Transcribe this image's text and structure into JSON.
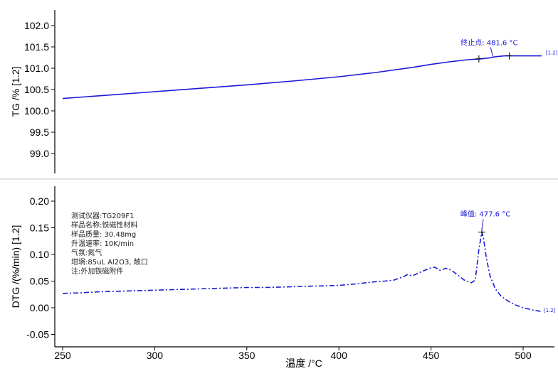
{
  "chart_data": [
    {
      "type": "line",
      "ylabel": "TG /% [1.2]",
      "ylim": [
        98.55,
        102.35
      ],
      "yticks": [
        102.0,
        101.5,
        101.0,
        100.5,
        100.0,
        99.5,
        99.0
      ],
      "ytick_labels": [
        "102.0",
        "101.5",
        "101.0",
        "100.5",
        "100.0",
        "99.5",
        "99.0"
      ],
      "xlim": [
        247,
        516
      ],
      "series": [
        {
          "x": [
            250,
            275,
            300,
            325,
            350,
            375,
            400,
            420,
            440,
            450,
            460,
            470,
            477,
            481.6,
            485,
            490,
            495,
            500,
            505,
            510
          ],
          "values": [
            100.29,
            100.37,
            100.45,
            100.53,
            100.61,
            100.7,
            100.8,
            100.9,
            101.02,
            101.09,
            101.15,
            101.2,
            101.22,
            101.24,
            101.27,
            101.29,
            101.29,
            101.29,
            101.29,
            101.29
          ]
        }
      ],
      "annotations": [
        {
          "text": "终止点: 481.6 °C",
          "x": 481.6,
          "y": 101.24
        }
      ],
      "markers": [
        {
          "x": 476.0,
          "y": 101.22
        },
        {
          "x": 492.5,
          "y": 101.29
        }
      ],
      "curve_label": {
        "text": "[1.2]",
        "x": 510,
        "y": 101.29
      }
    },
    {
      "type": "line",
      "ylabel": "DTG /(%/min) [1.2]",
      "xlabel": "温度 /°C",
      "ylim": [
        -0.075,
        0.222
      ],
      "yticks": [
        0.2,
        0.15,
        0.1,
        0.05,
        0.0,
        -0.05
      ],
      "ytick_labels": [
        "0.20",
        "0.15",
        "0.10",
        "0.05",
        "0.00",
        "-0.05"
      ],
      "xlim": [
        247,
        516
      ],
      "xticks": [
        250,
        300,
        350,
        400,
        450,
        500
      ],
      "xtick_labels": [
        "250",
        "300",
        "350",
        "400",
        "450",
        "500"
      ],
      "series": [
        {
          "x": [
            250,
            260,
            270,
            280,
            290,
            300,
            310,
            320,
            330,
            340,
            350,
            360,
            370,
            380,
            390,
            400,
            410,
            415,
            420,
            425,
            430,
            435,
            437,
            440,
            445,
            450,
            452,
            455,
            458,
            460,
            462,
            465,
            468,
            470,
            472,
            474,
            475,
            476,
            477.6,
            478.5,
            480,
            482,
            485,
            488,
            492,
            496,
            500,
            505,
            510
          ],
          "values": [
            0.027,
            0.028,
            0.03,
            0.031,
            0.032,
            0.033,
            0.034,
            0.035,
            0.036,
            0.037,
            0.038,
            0.038,
            0.039,
            0.04,
            0.041,
            0.042,
            0.045,
            0.047,
            0.049,
            0.05,
            0.052,
            0.058,
            0.062,
            0.06,
            0.068,
            0.075,
            0.076,
            0.07,
            0.074,
            0.072,
            0.068,
            0.06,
            0.052,
            0.049,
            0.047,
            0.052,
            0.08,
            0.11,
            0.142,
            0.13,
            0.095,
            0.06,
            0.035,
            0.022,
            0.012,
            0.005,
            0.0,
            -0.004,
            -0.007
          ]
        }
      ],
      "annotations": [
        {
          "text": "峰值: 477.6 °C",
          "x": 477.6,
          "y": 0.142
        }
      ],
      "markers": [
        {
          "x": 477.6,
          "y": 0.142
        }
      ],
      "curve_label": {
        "text": "[1.2]",
        "x": 510,
        "y": -0.005
      }
    }
  ],
  "info_lines": [
    "测试仪器:TG209F1",
    "样品名称:铁磁性材料",
    "样品质量: 30.48mg",
    "升温速率: 10K/min",
    "气氛:氮气",
    "坩埚:85uL Al2O3, 敞口",
    "注:外加铁磁附件"
  ],
  "colors": {
    "curve": "#1a1ad6",
    "axis": "#000000",
    "divider": "#c8c8c8"
  }
}
